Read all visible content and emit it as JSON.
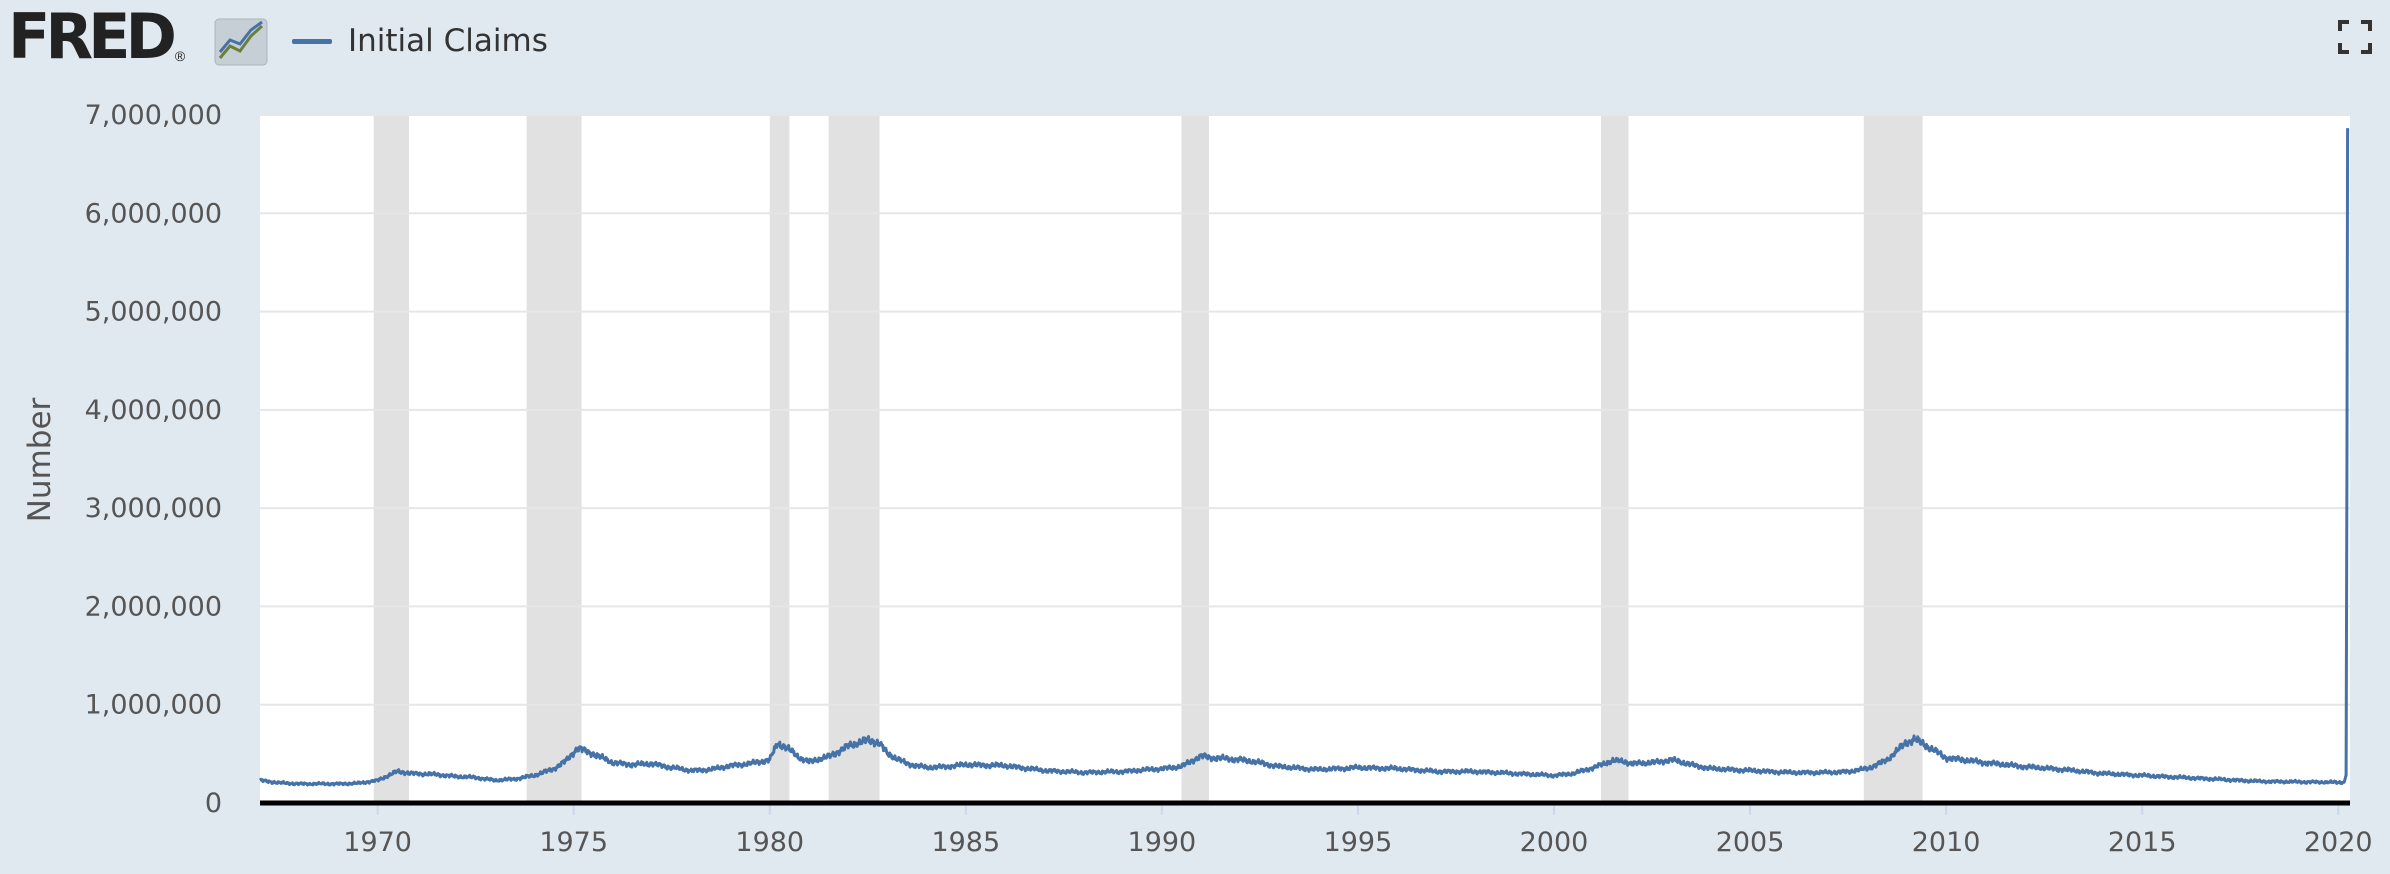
{
  "header": {
    "logo_text": "FRED",
    "logo_reg": "®",
    "graph_icon": "fred-graph-icon",
    "fullscreen_icon": "fullscreen-icon"
  },
  "colors": {
    "background": "#e1e9f0",
    "plot_area": "#ffffff",
    "series": "#4572a7",
    "recession": "#e1e1e1",
    "grid": "#e6e6e6"
  },
  "chart_data": {
    "type": "line",
    "ylabel": "Number",
    "xlabel": "",
    "ylim": [
      0,
      7000000
    ],
    "xlim": [
      1967.0,
      2020.3
    ],
    "yticks": [
      0,
      1000000,
      2000000,
      3000000,
      4000000,
      5000000,
      6000000,
      7000000
    ],
    "ytick_labels": [
      "0",
      "1,000,000",
      "2,000,000",
      "3,000,000",
      "4,000,000",
      "5,000,000",
      "6,000,000",
      "7,000,000"
    ],
    "xticks": [
      1970,
      1975,
      1980,
      1985,
      1990,
      1995,
      2000,
      2005,
      2010,
      2015,
      2020
    ],
    "xtick_labels": [
      "1970",
      "1975",
      "1980",
      "1985",
      "1990",
      "1995",
      "2000",
      "2005",
      "2010",
      "2015",
      "2020"
    ],
    "grid": true,
    "legend": "top-left",
    "recessions": [
      [
        1969.9,
        1970.8
      ],
      [
        1973.8,
        1975.2
      ],
      [
        1980.0,
        1980.5
      ],
      [
        1981.5,
        1982.8
      ],
      [
        1990.5,
        1991.2
      ],
      [
        2001.2,
        2001.9
      ],
      [
        2007.9,
        2009.4
      ]
    ],
    "series": [
      {
        "name": "Initial Claims",
        "x": [
          1967.0,
          1967.5,
          1968.0,
          1968.5,
          1969.0,
          1969.5,
          1970.0,
          1970.5,
          1970.9,
          1971.5,
          1972.0,
          1972.5,
          1973.0,
          1973.5,
          1974.0,
          1974.5,
          1974.8,
          1975.1,
          1975.5,
          1976.0,
          1976.5,
          1977.0,
          1977.5,
          1978.0,
          1978.5,
          1979.0,
          1979.5,
          1980.0,
          1980.2,
          1980.5,
          1980.8,
          1981.0,
          1981.5,
          1982.0,
          1982.5,
          1982.8,
          1983.0,
          1983.5,
          1984.0,
          1984.5,
          1985.0,
          1986.0,
          1987.0,
          1988.0,
          1989.0,
          1990.0,
          1990.5,
          1991.0,
          1991.3,
          1992.0,
          1992.5,
          1993.0,
          1994.0,
          1995.0,
          1996.0,
          1997.0,
          1998.0,
          1999.0,
          2000.0,
          2000.5,
          2001.0,
          2001.5,
          2001.8,
          2002.0,
          2002.5,
          2003.0,
          2003.5,
          2004.0,
          2005.0,
          2006.0,
          2007.0,
          2007.5,
          2008.0,
          2008.5,
          2009.0,
          2009.2,
          2009.5,
          2010.0,
          2011.0,
          2012.0,
          2013.0,
          2014.0,
          2015.0,
          2016.0,
          2017.0,
          2018.0,
          2019.0,
          2020.0,
          2020.15,
          2020.2,
          2020.22,
          2020.24
        ],
        "values": [
          230000,
          205000,
          195000,
          195000,
          195000,
          200000,
          230000,
          320000,
          300000,
          290000,
          270000,
          260000,
          230000,
          245000,
          280000,
          350000,
          430000,
          560000,
          500000,
          410000,
          390000,
          400000,
          360000,
          330000,
          340000,
          380000,
          400000,
          440000,
          610000,
          540000,
          450000,
          420000,
          470000,
          580000,
          640000,
          610000,
          500000,
          400000,
          360000,
          370000,
          390000,
          380000,
          330000,
          310000,
          320000,
          350000,
          370000,
          480000,
          460000,
          440000,
          410000,
          370000,
          340000,
          360000,
          350000,
          320000,
          320000,
          300000,
          280000,
          300000,
          360000,
          430000,
          420000,
          400000,
          410000,
          440000,
          390000,
          350000,
          330000,
          310000,
          310000,
          320000,
          350000,
          440000,
          620000,
          650000,
          580000,
          460000,
          410000,
          370000,
          340000,
          300000,
          280000,
          260000,
          240000,
          220000,
          215000,
          210000,
          211000,
          282000,
          3307000,
          6867000
        ]
      }
    ]
  }
}
